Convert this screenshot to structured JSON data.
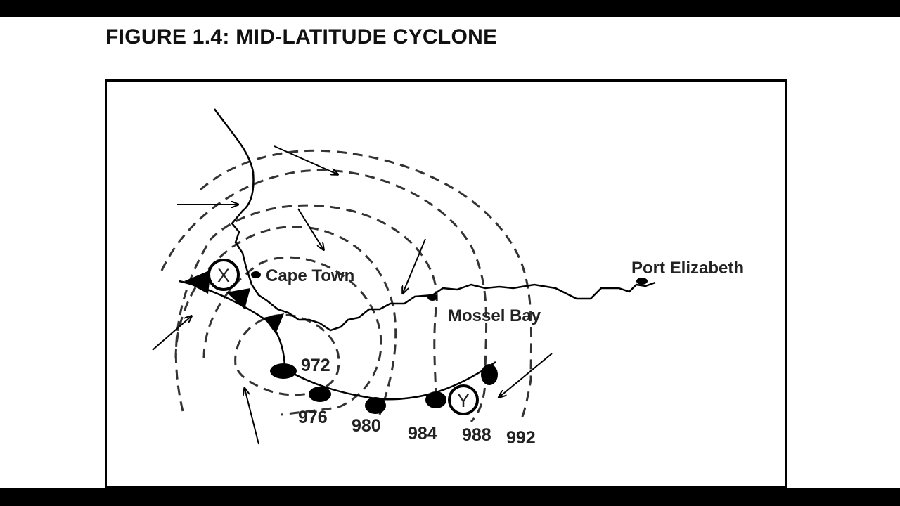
{
  "title": "FIGURE 1.4:  MID-LATITUDE CYCLONE",
  "diagram": {
    "places": [
      "Cape Town",
      "Mossel Bay",
      "Port Elizabeth"
    ],
    "points": [
      "X",
      "Y"
    ],
    "isobars": [
      "972",
      "976",
      "980",
      "984",
      "988",
      "992"
    ],
    "fronts": [
      "cold-front",
      "warm-front"
    ],
    "colors": {
      "ink": "#000000",
      "background": "#ffffff"
    }
  }
}
